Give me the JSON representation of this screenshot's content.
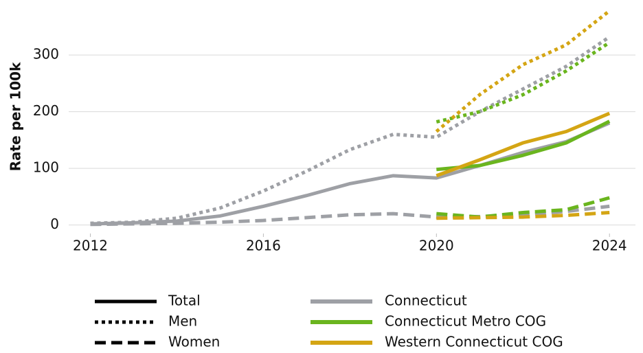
{
  "chart_data": {
    "type": "line",
    "ylabel": "Rate per 100k",
    "x": [
      2012,
      2013,
      2014,
      2015,
      2016,
      2017,
      2018,
      2019,
      2020,
      2021,
      2022,
      2023,
      2024
    ],
    "xlim": [
      2011.5,
      2024.6
    ],
    "xticks": [
      2012,
      2016,
      2020,
      2024
    ],
    "ylim": [
      -15,
      385
    ],
    "yticks": [
      0,
      100,
      200,
      300
    ],
    "grid": true,
    "legend": {
      "styles": [
        {
          "name": "Total",
          "dash": "solid"
        },
        {
          "name": "Men",
          "dash": "dotted"
        },
        {
          "name": "Women",
          "dash": "dashed"
        }
      ],
      "regions": [
        {
          "name": "Connecticut",
          "color": "#9ea0a5"
        },
        {
          "name": "Connecticut Metro COG",
          "color": "#6ab51e"
        },
        {
          "name": "Western Connecticut COG",
          "color": "#d4a514"
        }
      ]
    },
    "series": [
      {
        "region": "Connecticut",
        "style": "Total",
        "values": [
          2,
          4,
          7,
          16,
          33,
          52,
          73,
          87,
          83,
          105,
          128,
          147,
          180
        ]
      },
      {
        "region": "Connecticut",
        "style": "Men",
        "values": [
          3,
          5,
          12,
          30,
          60,
          95,
          133,
          160,
          155,
          200,
          240,
          280,
          332
        ]
      },
      {
        "region": "Connecticut",
        "style": "Women",
        "values": [
          1,
          2,
          3,
          5,
          8,
          13,
          18,
          20,
          14,
          15,
          18,
          24,
          33
        ]
      },
      {
        "region": "Connecticut Metro COG",
        "style": "Total",
        "values": [
          null,
          null,
          null,
          null,
          null,
          null,
          null,
          null,
          98,
          105,
          123,
          145,
          183
        ]
      },
      {
        "region": "Connecticut Metro COG",
        "style": "Men",
        "values": [
          null,
          null,
          null,
          null,
          null,
          null,
          null,
          null,
          182,
          200,
          230,
          272,
          322
        ]
      },
      {
        "region": "Connecticut Metro COG",
        "style": "Women",
        "values": [
          null,
          null,
          null,
          null,
          null,
          null,
          null,
          null,
          20,
          14,
          22,
          27,
          48
        ]
      },
      {
        "region": "Western Connecticut COG",
        "style": "Total",
        "values": [
          null,
          null,
          null,
          null,
          null,
          null,
          null,
          null,
          87,
          115,
          145,
          165,
          197
        ]
      },
      {
        "region": "Western Connecticut COG",
        "style": "Men",
        "values": [
          null,
          null,
          null,
          null,
          null,
          null,
          null,
          null,
          165,
          230,
          283,
          318,
          378
        ]
      },
      {
        "region": "Western Connecticut COG",
        "style": "Women",
        "values": [
          null,
          null,
          null,
          null,
          null,
          null,
          null,
          null,
          12,
          13,
          14,
          17,
          22
        ]
      }
    ]
  }
}
